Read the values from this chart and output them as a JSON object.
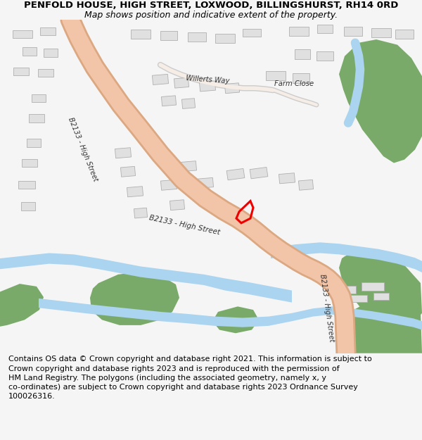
{
  "title": "PENFOLD HOUSE, HIGH STREET, LOXWOOD, BILLINGSHURST, RH14 0RD",
  "subtitle": "Map shows position and indicative extent of the property.",
  "footer": "Contains OS data © Crown copyright and database right 2021. This information is subject to\nCrown copyright and database rights 2023 and is reproduced with the permission of\nHM Land Registry. The polygons (including the associated geometry, namely x, y\nco-ordinates) are subject to Crown copyright and database rights 2023 Ordnance Survey\n100026316.",
  "bg_color": "#f5f5f5",
  "map_bg": "#ffffff",
  "road_color": "#f2c4a8",
  "road_outline": "#dba882",
  "water_color": "#aad4f0",
  "green_color": "#7aaa6a",
  "building_color": "#e0e0e0",
  "building_outline": "#b0b0b0",
  "plot_color": "#ee0000",
  "road_label_color": "#333333",
  "title_fontsize": 9.5,
  "subtitle_fontsize": 9,
  "footer_fontsize": 8
}
